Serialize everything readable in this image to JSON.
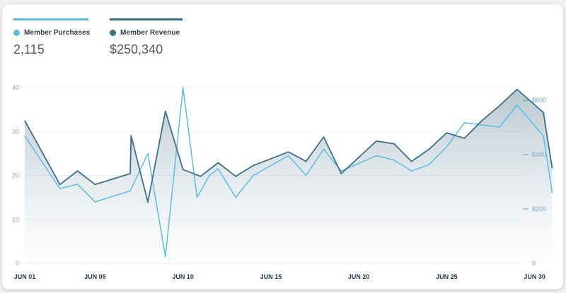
{
  "colors": {
    "purchases": "#5bbde0",
    "revenue": "#3f6f86",
    "left_axis_text": "#9aa3a9",
    "right_axis_text": "#6aa9c4",
    "x_axis_text": "#1f3a4d",
    "grid": "#eef1f3"
  },
  "kpis": [
    {
      "label": "Member Purchases",
      "value": "2,115",
      "color": "#5bbde0"
    },
    {
      "label": "Member Revenue",
      "value": "$250,340",
      "color": "#3f6f86"
    }
  ],
  "chart_data": {
    "type": "line",
    "x_tick_labels": [
      "JUN 01",
      "JUN 05",
      "JUN 10",
      "JUN 15",
      "JUN 20",
      "JUN 25",
      "JUN 30"
    ],
    "x_tick_days": [
      1,
      5,
      10,
      15,
      20,
      25,
      30
    ],
    "y_left": {
      "ticks": [
        "0",
        "10",
        "20",
        "30",
        "40"
      ],
      "range": [
        0,
        40
      ]
    },
    "y_right": {
      "ticks": [
        "0",
        "$200",
        "$400",
        "$600"
      ],
      "range": [
        0,
        600
      ]
    },
    "grid": true,
    "legend_placement": "top-left",
    "series": [
      {
        "name": "Member Purchases",
        "axis": "left",
        "style": "line",
        "days": [
          1,
          3,
          4,
          5,
          7,
          8,
          9,
          10,
          10.8,
          11.5,
          12,
          13,
          14,
          16,
          17,
          18,
          19,
          21,
          22,
          23,
          24,
          25,
          26,
          27,
          28,
          29,
          30.5,
          31
        ],
        "values": [
          29,
          17,
          18,
          14,
          16.5,
          25,
          1.5,
          40,
          15,
          20,
          21.5,
          15,
          20,
          24.5,
          20,
          26,
          21,
          24.5,
          23.5,
          21,
          22.5,
          26.5,
          32,
          31.5,
          31,
          36,
          29,
          16
        ]
      },
      {
        "name": "Member Revenue",
        "axis": "right",
        "style": "area",
        "days": [
          1,
          3,
          4,
          5,
          7,
          7.05,
          8,
          9,
          10,
          11,
          12,
          13,
          14,
          16,
          17,
          18,
          19,
          21,
          22,
          23,
          24,
          25,
          26,
          27,
          28,
          29,
          30.5,
          31
        ],
        "values": [
          525,
          290,
          340,
          290,
          330,
          470,
          225,
          560,
          345,
          320,
          370,
          320,
          360,
          410,
          375,
          465,
          330,
          450,
          440,
          375,
          420,
          480,
          460,
          525,
          580,
          640,
          555,
          350
        ]
      }
    ]
  }
}
